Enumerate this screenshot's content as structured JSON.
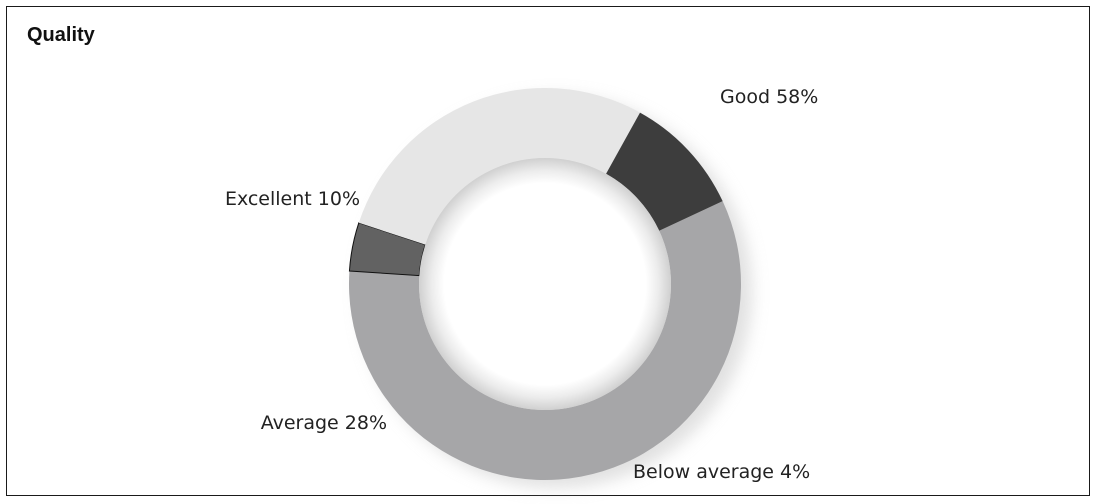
{
  "chart_data": {
    "type": "pie",
    "title": "Quality",
    "slices": [
      {
        "label": "Good 58%",
        "name": "Good",
        "value": 58,
        "color": "#a6a6a8"
      },
      {
        "label": "Below average 4%",
        "name": "Below average",
        "value": 4,
        "color": "#626262"
      },
      {
        "label": "Average 28%",
        "name": "Average",
        "value": 28,
        "color": "#e6e6e6"
      },
      {
        "label": "Excellent 10%",
        "name": "Excellent",
        "value": 10,
        "color": "#3d3d3d"
      }
    ],
    "start_angle_deg": 65,
    "donut": true,
    "legend": "none"
  }
}
